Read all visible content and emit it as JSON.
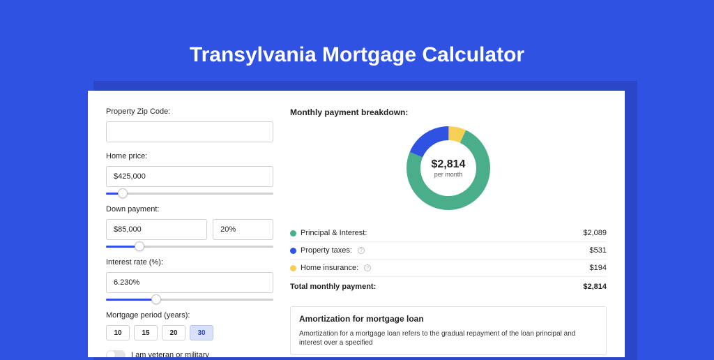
{
  "page_title": "Transylvania Mortgage Calculator",
  "colors": {
    "page_bg": "#3052e3",
    "shadow_bg": "#2b46c8",
    "card_bg": "#ffffff",
    "accent": "#3052e3",
    "text": "#222222"
  },
  "form": {
    "zip": {
      "label": "Property Zip Code:",
      "value": ""
    },
    "home_price": {
      "label": "Home price:",
      "value": "$425,000",
      "slider_pct": 10
    },
    "down_payment": {
      "label": "Down payment:",
      "value": "$85,000",
      "pct": "20%",
      "slider_pct": 20
    },
    "interest_rate": {
      "label": "Interest rate (%):",
      "value": "6.230%",
      "slider_pct": 30
    },
    "period": {
      "label": "Mortgage period (years):",
      "options": [
        "10",
        "15",
        "20",
        "30"
      ],
      "selected": "30"
    },
    "veteran": {
      "label": "I am veteran or military",
      "checked": false
    }
  },
  "breakdown": {
    "title": "Monthly payment breakdown:",
    "donut": {
      "value": "$2,814",
      "sub": "per month",
      "segments": [
        {
          "label": "Principal & Interest:",
          "value": "$2,089",
          "pct": 74.3,
          "color": "#4bae8a",
          "has_info": false
        },
        {
          "label": "Property taxes:",
          "value": "$531",
          "pct": 18.9,
          "color": "#3052e3",
          "has_info": true
        },
        {
          "label": "Home insurance:",
          "value": "$194",
          "pct": 6.9,
          "color": "#f6cf56",
          "has_info": true
        }
      ],
      "stroke_width": 20
    },
    "total": {
      "label": "Total monthly payment:",
      "value": "$2,814"
    }
  },
  "amort": {
    "title": "Amortization for mortgage loan",
    "text": "Amortization for a mortgage loan refers to the gradual repayment of the loan principal and interest over a specified"
  }
}
